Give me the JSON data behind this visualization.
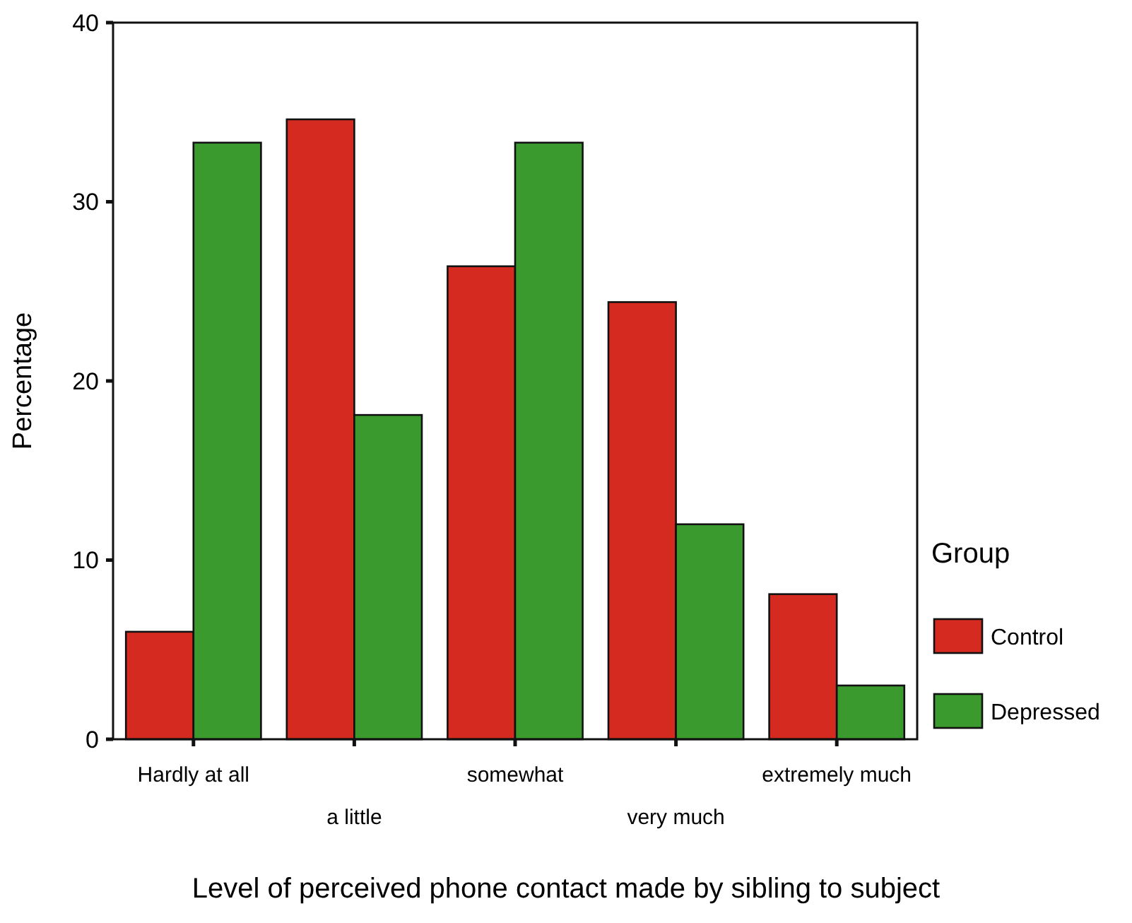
{
  "chart_data": {
    "type": "bar",
    "xlabel": "Level of perceived phone contact made by sibling to subject",
    "ylabel": "Percentage",
    "legend_title": "Group",
    "categories": [
      "Hardly at all",
      "a little",
      "somewhat",
      "very much",
      "extremely much"
    ],
    "series": [
      {
        "name": "Control",
        "color": "#d42a1f",
        "values": [
          6.0,
          34.6,
          26.4,
          24.4,
          8.1
        ]
      },
      {
        "name": "Depressed",
        "color": "#3a9a2e",
        "values": [
          33.3,
          18.1,
          33.3,
          12.0,
          3.0
        ]
      }
    ],
    "ylim": [
      0,
      40
    ],
    "yticks": [
      0,
      10,
      20,
      30,
      40
    ],
    "grid": false,
    "legend": "right"
  }
}
